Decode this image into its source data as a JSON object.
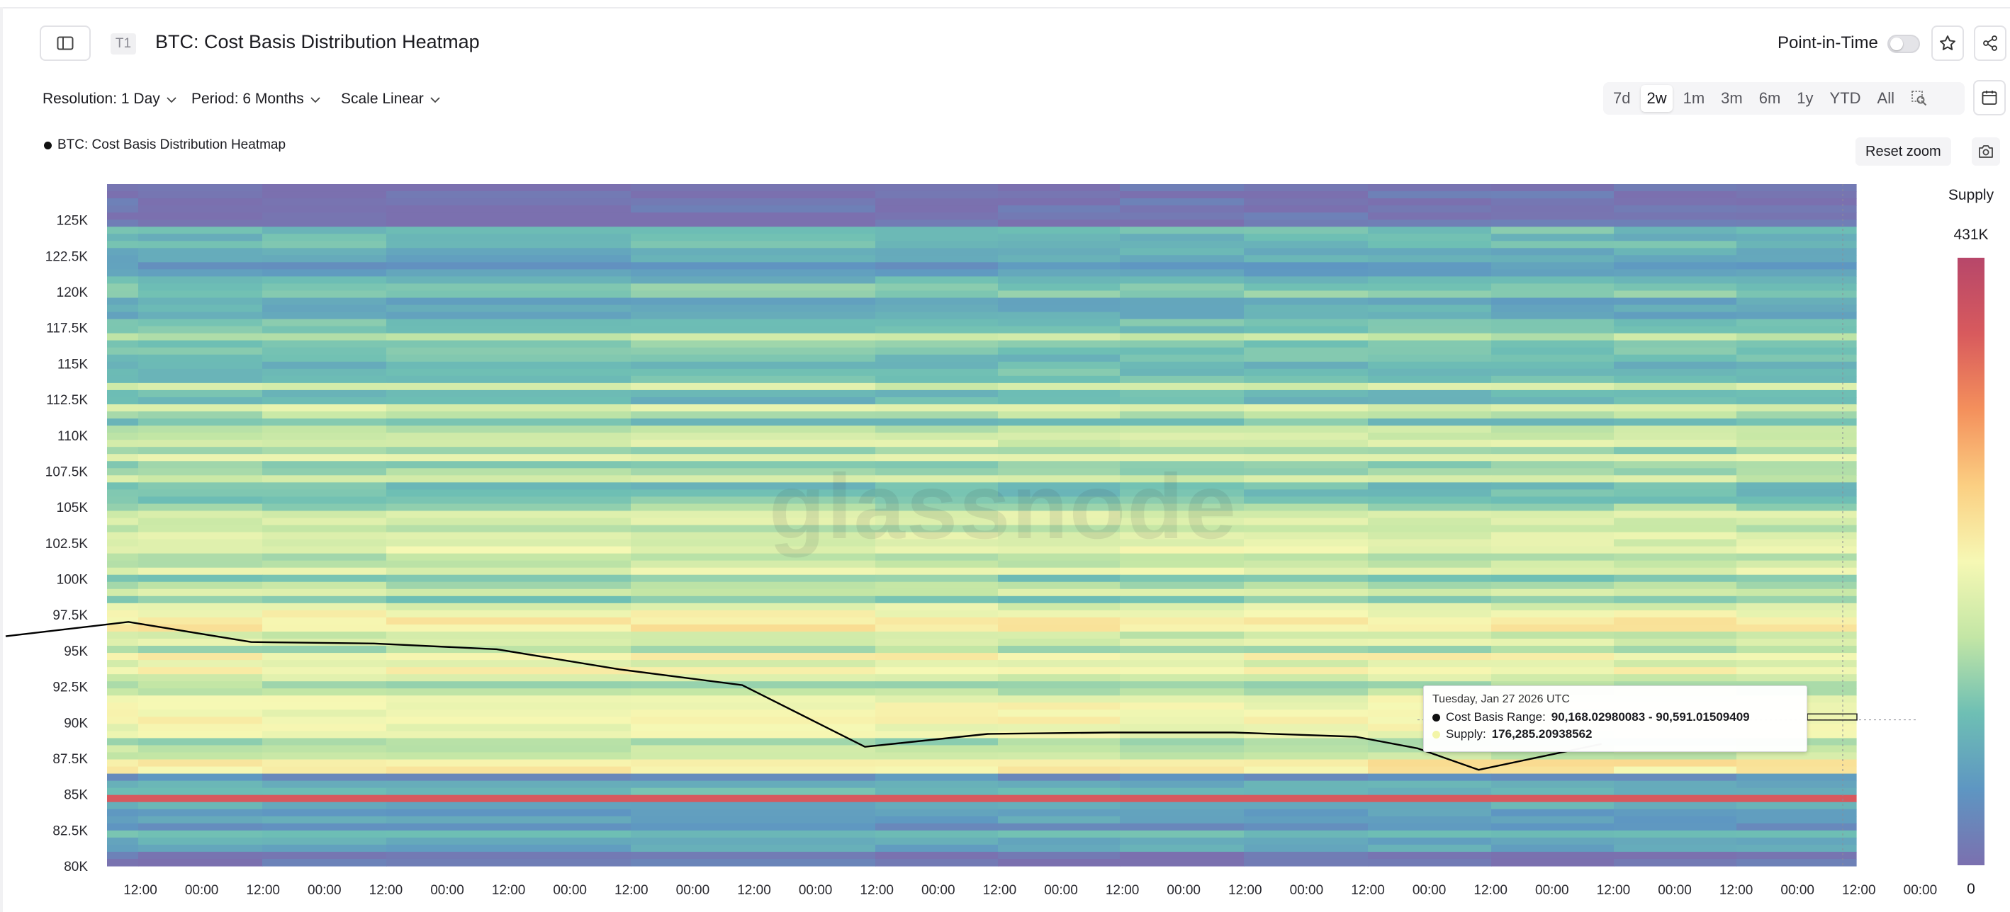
{
  "header": {
    "tier_badge": "T1",
    "title": "BTC: Cost Basis Distribution Heatmap",
    "point_in_time_label": "Point-in-Time"
  },
  "controls": {
    "resolution_label": "Resolution: 1 Day",
    "period_label": "Period: 6 Months",
    "scale_label": "Scale Linear",
    "ranges": [
      "7d",
      "2w",
      "1m",
      "3m",
      "6m",
      "1y",
      "YTD",
      "All"
    ],
    "active_range": "2w",
    "reset_zoom_label": "Reset zoom"
  },
  "icons": {
    "sidebar": "sidebar-toggle-icon",
    "star": "star-icon",
    "share": "share-icon",
    "calendar": "calendar-icon",
    "zoom_select": "zoom-select-icon",
    "camera": "camera-icon"
  },
  "tooltip": {
    "date": "Tuesday, Jan 27 2026 UTC",
    "range_label": "Cost Basis Range:",
    "range_value": "90,168.02980083 - 90,591.01509409",
    "supply_label": "Supply:",
    "supply_value": "176,285.20938562",
    "range_dot_color": "#111111",
    "supply_dot_color": "#f3f5a8"
  },
  "chart_data": {
    "type": "heatmap",
    "title": "BTC: Cost Basis Distribution Heatmap",
    "legend": [
      "BTC: Cost Basis Distribution Heatmap"
    ],
    "y_ticks": [
      "80K",
      "82.5K",
      "85K",
      "87.5K",
      "90K",
      "92.5K",
      "95K",
      "97.5K",
      "100K",
      "102.5K",
      "105K",
      "107.5K",
      "110K",
      "112.5K",
      "115K",
      "117.5K",
      "120K",
      "122.5K",
      "125K"
    ],
    "y_tick_values": [
      80000,
      82500,
      85000,
      87500,
      90000,
      92500,
      95000,
      97500,
      100000,
      102500,
      105000,
      107500,
      110000,
      112500,
      115000,
      117500,
      120000,
      122500,
      125000
    ],
    "ylim": [
      80000,
      127500
    ],
    "x_ticks": [
      "12:00",
      "00:00",
      "12:00",
      "00:00",
      "12:00",
      "00:00",
      "12:00",
      "00:00",
      "12:00",
      "00:00",
      "12:00",
      "00:00",
      "12:00",
      "00:00",
      "12:00",
      "00:00",
      "12:00",
      "00:00",
      "12:00",
      "00:00",
      "12:00",
      "00:00",
      "12:00",
      "00:00",
      "12:00",
      "00:00",
      "12:00",
      "00:00",
      "12:00",
      "00:00"
    ],
    "colorbar": {
      "label": "Supply",
      "max_label": "431K",
      "min_label": "0",
      "colors": [
        "#7b70af",
        "#5e96c2",
        "#6ebfb4",
        "#c3e6a5",
        "#f6f8b4",
        "#fbcf82",
        "#f4905c",
        "#d85a5d",
        "#b7476a"
      ]
    },
    "price_series": [
      {
        "time": "T-15.0d",
        "price": 96000
      },
      {
        "time": "T-14.0d",
        "price": 97000
      },
      {
        "time": "T-13.0d",
        "price": 95600
      },
      {
        "time": "T-12.0d",
        "price": 95500
      },
      {
        "time": "T-11.0d",
        "price": 95100
      },
      {
        "time": "T-10.0d",
        "price": 93700
      },
      {
        "time": "T-9.0d",
        "price": 92600
      },
      {
        "time": "T-8.0d",
        "price": 88300
      },
      {
        "time": "T-7.0d",
        "price": 89200
      },
      {
        "time": "T-6.0d",
        "price": 89300
      },
      {
        "time": "T-5.0d",
        "price": 89300
      },
      {
        "time": "T-4.0d",
        "price": 89000
      },
      {
        "time": "T-3.5d",
        "price": 88200
      },
      {
        "time": "T-3.0d",
        "price": 86700
      },
      {
        "time": "T-2.0d",
        "price": 88500
      }
    ],
    "highlight": {
      "band": [
        90168.02980083,
        90591.01509409
      ],
      "supply": 176285.20938562,
      "date": "Tuesday, Jan 27 2026 UTC"
    }
  }
}
